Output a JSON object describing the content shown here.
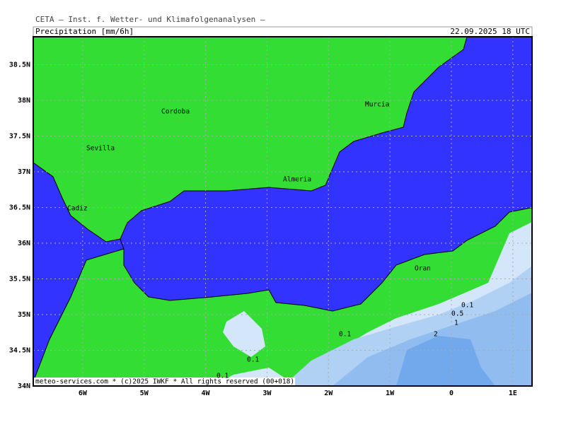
{
  "header": {
    "title": "CETA – Inst. f. Wetter- und Klimafolgenanalysen –",
    "product": "Precipitation [mm/6h]",
    "valid": "22.09.2025 18 UTC"
  },
  "map": {
    "lat_labels": [
      {
        "value": 38.5,
        "label": "38.5N"
      },
      {
        "value": 38,
        "label": "38N"
      },
      {
        "value": 37.5,
        "label": "37.5N"
      },
      {
        "value": 37,
        "label": "37N"
      },
      {
        "value": 36.5,
        "label": "36.5N"
      },
      {
        "value": 36,
        "label": "36N"
      },
      {
        "value": 35.5,
        "label": "35.5N"
      },
      {
        "value": 35,
        "label": "35N"
      },
      {
        "value": 34.5,
        "label": "34.5N"
      },
      {
        "value": 34,
        "label": "34N"
      }
    ],
    "lon_labels": [
      {
        "value": -6,
        "label": "6W"
      },
      {
        "value": -5,
        "label": "5W"
      },
      {
        "value": -4,
        "label": "4W"
      },
      {
        "value": -3,
        "label": "3W"
      },
      {
        "value": -2,
        "label": "2W"
      },
      {
        "value": -1,
        "label": "1W"
      },
      {
        "value": 0,
        "label": "0"
      },
      {
        "value": 1,
        "label": "1E"
      }
    ],
    "cities": [
      "Cordoba",
      "Murcia",
      "Sevilla",
      "Almeria",
      "Cadiz",
      "Oran"
    ],
    "contour_labels": [
      "0.1",
      "0.5",
      "1",
      "2",
      "0.1",
      "0.1",
      "0.1"
    ],
    "footer": "meteo-services.com * (c)2025 IWKF * All rights reserved (00+018)"
  }
}
